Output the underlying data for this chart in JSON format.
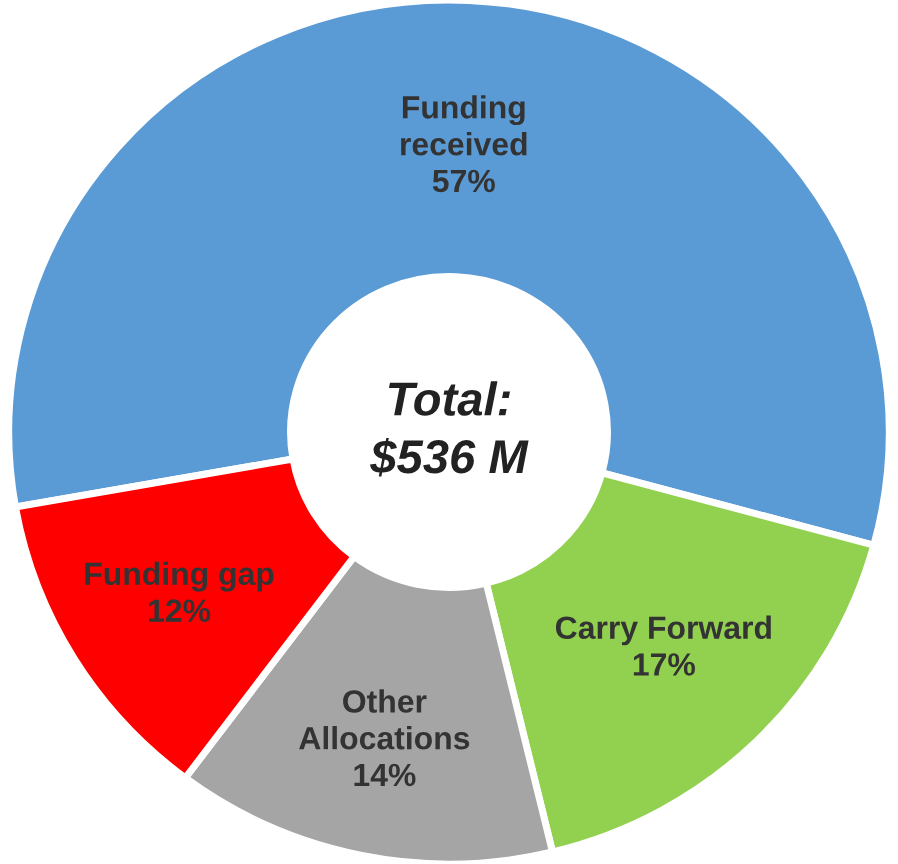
{
  "chart_data": {
    "type": "donut",
    "categories": [
      "Funding received",
      "Carry Forward",
      "Other Allocations",
      "Funding gap"
    ],
    "values": [
      57,
      17,
      14,
      12
    ],
    "colors": [
      "#5b9bd5",
      "#92d050",
      "#a5a5a5",
      "#ff0000"
    ],
    "value_labels": [
      "57%",
      "17%",
      "14%",
      "12%"
    ],
    "annotations": [
      "Total:\n$536 M"
    ],
    "legend": false
  }
}
